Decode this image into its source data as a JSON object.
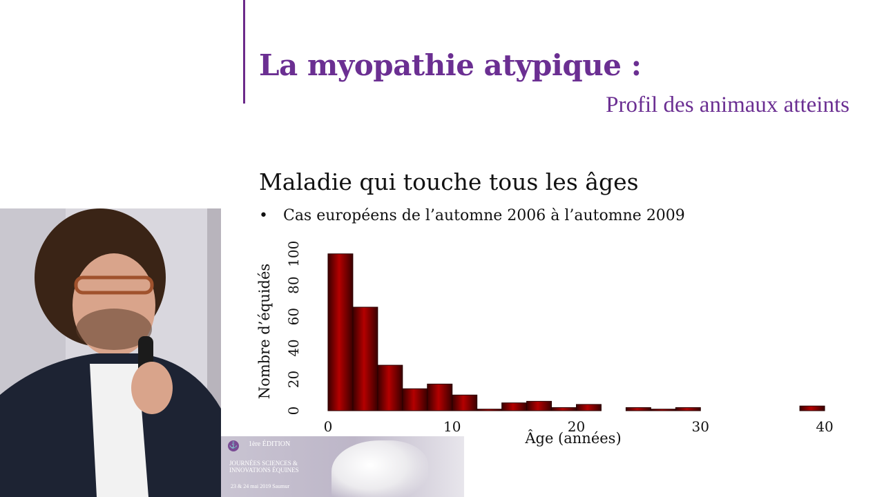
{
  "slide": {
    "title": "La myopathie atypique :",
    "subtitle": "Profil des animaux atteints",
    "heading": "Maladie qui touche tous les âges",
    "bullet_marker": "•",
    "bullet_text": "Cas européens de l’automne 2006 à l’automne 2009"
  },
  "banner": {
    "edition": "1ère ÉDITION",
    "name": "JOURNÉES SCIENCES & INNOVATIONS ÉQUINES",
    "dates": "23 & 24 mai 2019 Saumur"
  },
  "colors": {
    "accent": "#6b2f92",
    "bar": "#a80000"
  },
  "chart_data": {
    "type": "bar",
    "title": "",
    "xlabel": "Âge (années)",
    "ylabel": "Nombre d’équidés",
    "xlim": [
      -2.5,
      42
    ],
    "ylim": [
      0,
      110
    ],
    "xticks": [
      0,
      10,
      20,
      30,
      40
    ],
    "yticks": [
      0,
      20,
      40,
      60,
      80,
      100
    ],
    "bins": [
      {
        "x0": 0,
        "x1": 2,
        "value": 100
      },
      {
        "x0": 2,
        "x1": 4,
        "value": 66
      },
      {
        "x0": 4,
        "x1": 6,
        "value": 29
      },
      {
        "x0": 6,
        "x1": 8,
        "value": 14
      },
      {
        "x0": 8,
        "x1": 10,
        "value": 17
      },
      {
        "x0": 10,
        "x1": 12,
        "value": 10
      },
      {
        "x0": 12,
        "x1": 14,
        "value": 1
      },
      {
        "x0": 14,
        "x1": 16,
        "value": 5
      },
      {
        "x0": 16,
        "x1": 18,
        "value": 6
      },
      {
        "x0": 18,
        "x1": 20,
        "value": 2
      },
      {
        "x0": 20,
        "x1": 22,
        "value": 4
      },
      {
        "x0": 24,
        "x1": 26,
        "value": 2
      },
      {
        "x0": 26,
        "x1": 28,
        "value": 1
      },
      {
        "x0": 28,
        "x1": 30,
        "value": 2
      },
      {
        "x0": 38,
        "x1": 40,
        "value": 3
      }
    ]
  }
}
